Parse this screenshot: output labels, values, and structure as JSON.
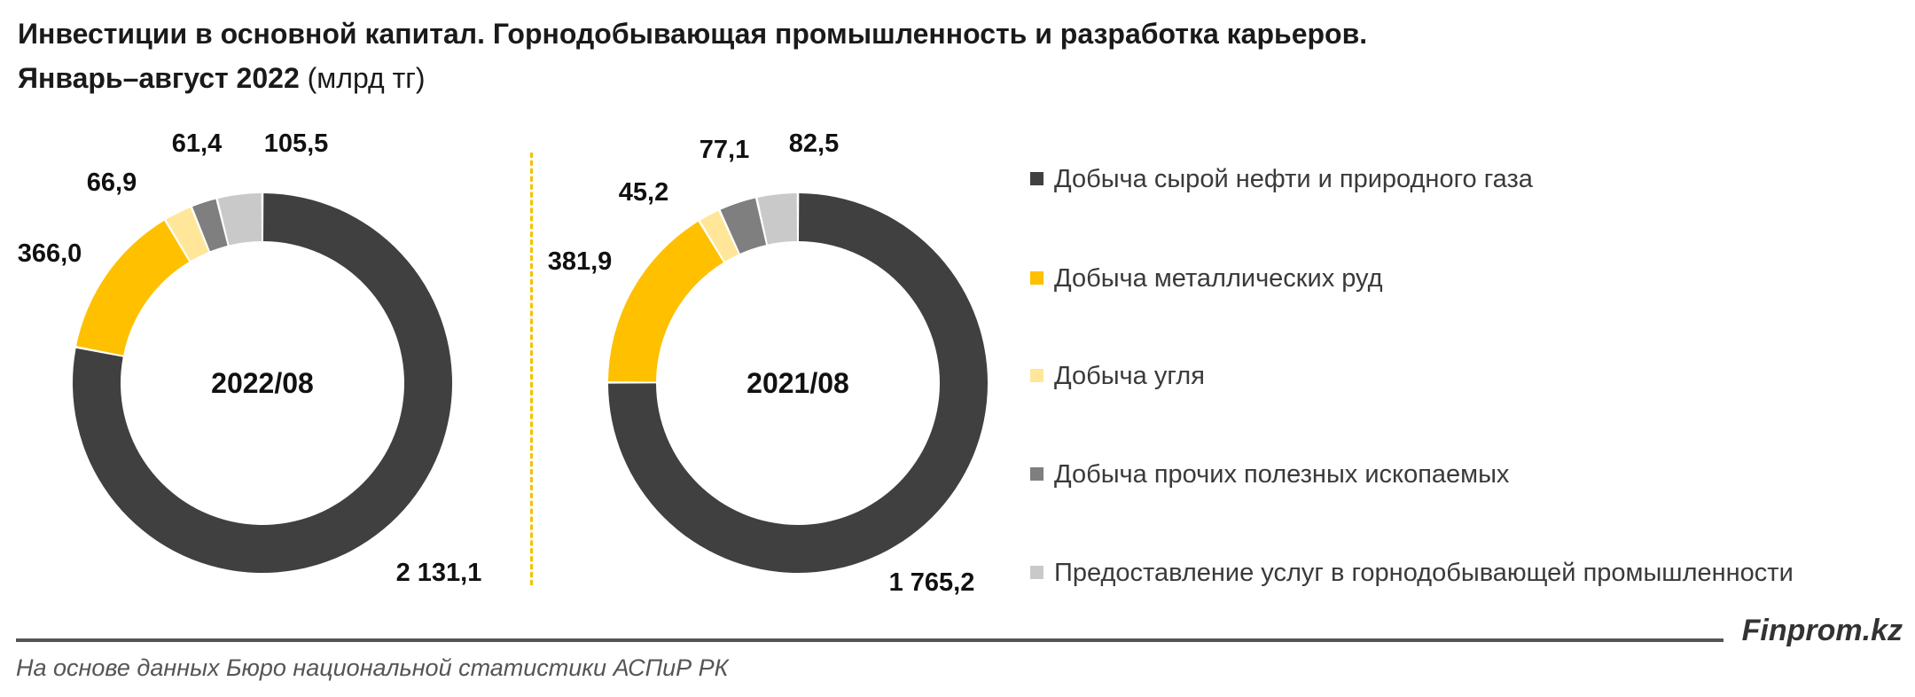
{
  "chart_data": {
    "type": "pie",
    "title_line1": "Инвестиции в основной капитал. Горнодобывающая промышленность и разработка карьеров.",
    "title_line2": "Январь–август 2022",
    "unit": "(млрд тг)",
    "categories": [
      "Добыча сырой нефти и природного газа",
      "Добыча металлических руд",
      "Добыча угля",
      "Добыча прочих полезных ископаемых",
      "Предоставление услуг в горнодобывающей промышленности"
    ],
    "colors": [
      "#404040",
      "#ffc000",
      "#ffe699",
      "#7f7f7f",
      "#c9c9c9"
    ],
    "legend_position": "right",
    "charts": [
      {
        "center_label": "2022/08",
        "values": [
          2131.1,
          366.0,
          66.9,
          61.4,
          105.5
        ],
        "labels": [
          "2 131,1",
          "366,0",
          "66,9",
          "61,4",
          "105,5"
        ]
      },
      {
        "center_label": "2021/08",
        "values": [
          1765.2,
          381.9,
          45.2,
          77.1,
          82.5
        ],
        "labels": [
          "1 765,2",
          "381,9",
          "45,2",
          "77,1",
          "82,5"
        ]
      }
    ]
  },
  "footer": {
    "brand": "Finprom.kz",
    "source": "На основе данных Бюро национальной статистики АСПиР РК"
  }
}
